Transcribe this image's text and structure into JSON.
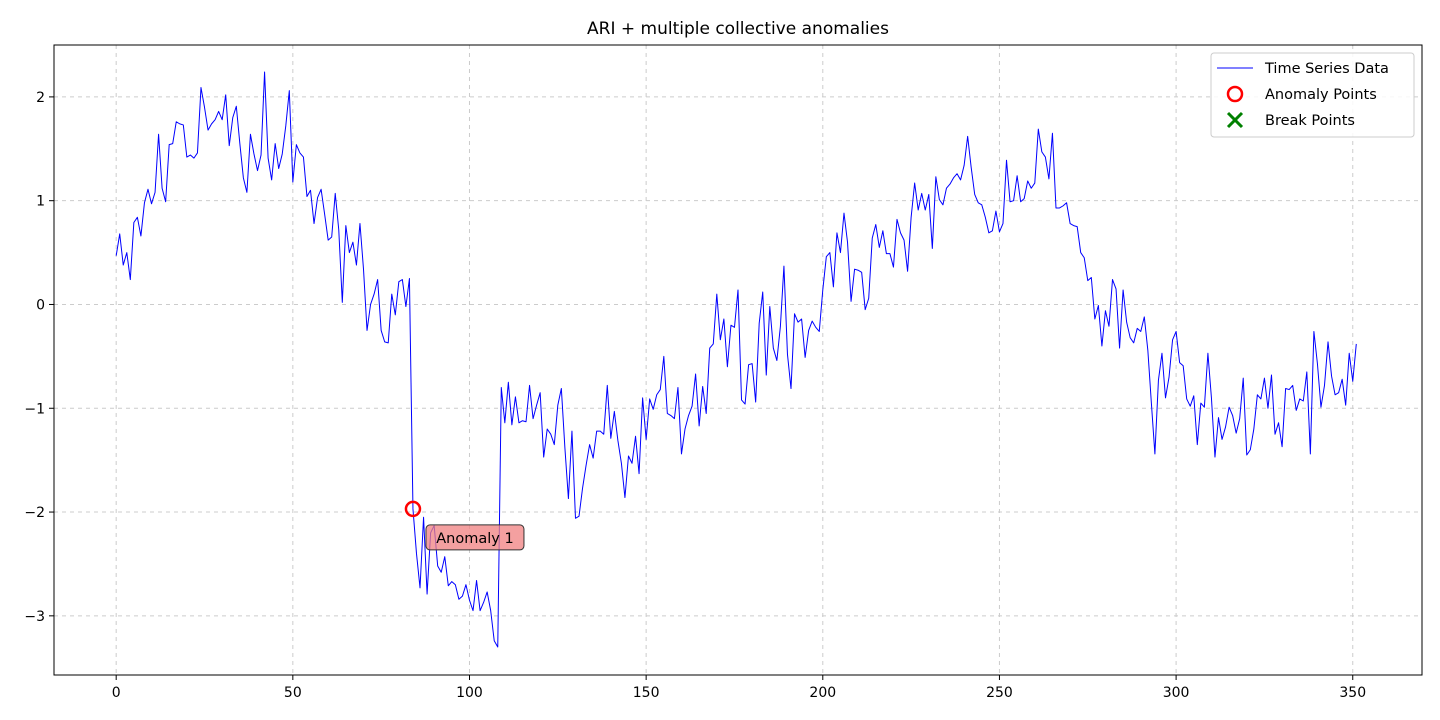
{
  "chart_data": {
    "type": "line",
    "title": "ARI + multiple collective anomalies",
    "xlabel": "",
    "ylabel": "",
    "xlim": [
      -17.6,
      369.6
    ],
    "ylim": [
      -3.57,
      2.5
    ],
    "xticks": [
      0,
      50,
      100,
      150,
      200,
      250,
      300,
      350
    ],
    "yticks": [
      -3,
      -2,
      -1,
      0,
      1,
      2
    ],
    "grid": true,
    "legend_position": "top-right",
    "colors": {
      "series": "#0000ff",
      "anomaly": "#ff0000",
      "break": "#008000",
      "annotation_fill": "#f08080",
      "grid": "#cccccc"
    },
    "series": [
      {
        "name": "Time Series Data",
        "x_start": 0,
        "x_step": 1,
        "values": [
          0.47,
          0.68,
          0.38,
          0.5,
          0.24,
          0.79,
          0.84,
          0.66,
          0.98,
          1.11,
          0.97,
          1.08,
          1.64,
          1.12,
          0.99,
          1.54,
          1.55,
          1.76,
          1.74,
          1.73,
          1.42,
          1.44,
          1.41,
          1.46,
          2.09,
          1.9,
          1.68,
          1.74,
          1.78,
          1.86,
          1.78,
          2.02,
          1.53,
          1.8,
          1.91,
          1.55,
          1.22,
          1.08,
          1.64,
          1.45,
          1.29,
          1.44,
          2.24,
          1.41,
          1.2,
          1.55,
          1.31,
          1.45,
          1.72,
          2.06,
          1.18,
          1.54,
          1.46,
          1.42,
          1.04,
          1.1,
          0.78,
          1.03,
          1.11,
          0.87,
          0.62,
          0.65,
          1.07,
          0.72,
          0.02,
          0.76,
          0.5,
          0.6,
          0.38,
          0.78,
          0.34,
          -0.25,
          0.0,
          0.1,
          0.24,
          -0.25,
          -0.36,
          -0.37,
          0.1,
          -0.1,
          0.22,
          0.24,
          -0.02,
          0.25,
          -1.97,
          -2.4,
          -2.73,
          -2.05,
          -2.79,
          -2.2,
          -2.13,
          -2.52,
          -2.58,
          -2.43,
          -2.71,
          -2.67,
          -2.7,
          -2.84,
          -2.81,
          -2.7,
          -2.85,
          -2.95,
          -2.66,
          -2.95,
          -2.87,
          -2.77,
          -2.95,
          -3.24,
          -3.3,
          -0.8,
          -1.14,
          -0.75,
          -1.16,
          -0.89,
          -1.14,
          -1.12,
          -1.13,
          -0.78,
          -1.1,
          -0.97,
          -0.85,
          -1.47,
          -1.2,
          -1.25,
          -1.35,
          -0.97,
          -0.81,
          -1.38,
          -1.87,
          -1.22,
          -2.06,
          -2.04,
          -1.77,
          -1.55,
          -1.35,
          -1.48,
          -1.22,
          -1.22,
          -1.25,
          -0.78,
          -1.29,
          -1.03,
          -1.31,
          -1.53,
          -1.86,
          -1.46,
          -1.53,
          -1.27,
          -1.63,
          -0.9,
          -1.3,
          -0.91,
          -1.01,
          -0.87,
          -0.82,
          -0.5,
          -1.05,
          -1.07,
          -1.1,
          -0.8,
          -1.44,
          -1.2,
          -1.07,
          -0.98,
          -0.67,
          -1.17,
          -0.79,
          -1.05,
          -0.42,
          -0.38,
          0.1,
          -0.34,
          -0.14,
          -0.6,
          -0.2,
          -0.22,
          0.14,
          -0.92,
          -0.96,
          -0.58,
          -0.57,
          -0.94,
          -0.18,
          0.12,
          -0.68,
          -0.02,
          -0.42,
          -0.54,
          -0.21,
          0.37,
          -0.48,
          -0.81,
          -0.09,
          -0.17,
          -0.14,
          -0.51,
          -0.25,
          -0.16,
          -0.22,
          -0.26,
          0.14,
          0.46,
          0.5,
          0.17,
          0.69,
          0.5,
          0.88,
          0.6,
          0.03,
          0.34,
          0.33,
          0.31,
          -0.05,
          0.06,
          0.64,
          0.77,
          0.55,
          0.71,
          0.49,
          0.49,
          0.36,
          0.82,
          0.69,
          0.62,
          0.32,
          0.84,
          1.17,
          0.91,
          1.07,
          0.91,
          1.06,
          0.54,
          1.23,
          1.01,
          0.96,
          1.12,
          1.16,
          1.22,
          1.26,
          1.2,
          1.34,
          1.62,
          1.32,
          1.06,
          0.98,
          0.96,
          0.84,
          0.69,
          0.71,
          0.9,
          0.7,
          0.78,
          1.39,
          0.99,
          1.0,
          1.24,
          0.99,
          1.02,
          1.19,
          1.12,
          1.17,
          1.69,
          1.47,
          1.42,
          1.21,
          1.65,
          0.93,
          0.93,
          0.95,
          0.98,
          0.78,
          0.76,
          0.75,
          0.5,
          0.45,
          0.23,
          0.26,
          -0.14,
          -0.01,
          -0.4,
          -0.06,
          -0.21,
          0.24,
          0.15,
          -0.42,
          0.14,
          -0.17,
          -0.32,
          -0.37,
          -0.23,
          -0.26,
          -0.12,
          -0.44,
          -0.95,
          -1.44,
          -0.73,
          -0.47,
          -0.9,
          -0.7,
          -0.34,
          -0.26,
          -0.56,
          -0.59,
          -0.91,
          -0.98,
          -0.88,
          -1.35,
          -0.95,
          -0.99,
          -0.47,
          -0.9,
          -1.47,
          -1.09,
          -1.3,
          -1.18,
          -0.99,
          -1.07,
          -1.24,
          -1.1,
          -0.71,
          -1.45,
          -1.4,
          -1.2,
          -0.87,
          -0.91,
          -0.71,
          -1.0,
          -0.68,
          -1.25,
          -1.14,
          -1.37,
          -0.81,
          -0.82,
          -0.78,
          -1.02,
          -0.91,
          -0.93,
          -0.65,
          -1.44,
          -0.26,
          -0.57,
          -0.99,
          -0.78,
          -0.36,
          -0.69,
          -0.87,
          -0.85,
          -0.72,
          -0.97,
          -0.47,
          -0.74,
          -0.38
        ]
      },
      {
        "name": "Anomaly Points",
        "points": [
          {
            "x": 84,
            "y": -1.97
          }
        ]
      },
      {
        "name": "Break Points",
        "points": []
      }
    ],
    "annotations": [
      {
        "text": "Anomaly 1",
        "x": 84,
        "y": -1.97
      }
    ]
  }
}
